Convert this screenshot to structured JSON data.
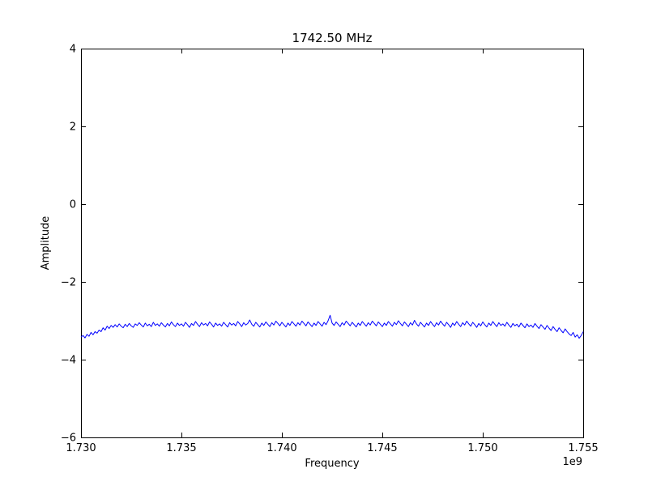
{
  "figure": {
    "background": "#ffffff",
    "axes_color": "#000000",
    "line_color": "#0000ff"
  },
  "chart_data": {
    "type": "line",
    "title": "1742.50 MHz",
    "xlabel": "Frequency",
    "ylabel": "Amplitude",
    "x_offset_label": "1e9",
    "xlim": [
      1730000000,
      1755000000
    ],
    "ylim": [
      -6,
      4
    ],
    "grid": false,
    "legend": null,
    "xticks": [
      1730000000,
      1735000000,
      1740000000,
      1745000000,
      1750000000,
      1755000000
    ],
    "xtick_labels": [
      "1.730",
      "1.735",
      "1.740",
      "1.745",
      "1.750",
      "1.755"
    ],
    "yticks": [
      4,
      2,
      0,
      -2,
      -4,
      -6
    ],
    "ytick_labels": [
      "4",
      "2",
      "0",
      "−2",
      "−4",
      "−6"
    ],
    "series": [
      {
        "name": "amplitude-trace",
        "color": "#0000ff",
        "x_start_mhz": 1730.0,
        "x_step_mhz": 0.1,
        "values": [
          -3.42,
          -3.38,
          -3.44,
          -3.35,
          -3.4,
          -3.3,
          -3.36,
          -3.28,
          -3.32,
          -3.24,
          -3.28,
          -3.18,
          -3.24,
          -3.14,
          -3.2,
          -3.12,
          -3.17,
          -3.1,
          -3.16,
          -3.08,
          -3.14,
          -3.18,
          -3.09,
          -3.15,
          -3.07,
          -3.13,
          -3.17,
          -3.08,
          -3.12,
          -3.05,
          -3.11,
          -3.16,
          -3.06,
          -3.13,
          -3.09,
          -3.15,
          -3.04,
          -3.12,
          -3.08,
          -3.14,
          -3.05,
          -3.11,
          -3.16,
          -3.07,
          -3.13,
          -3.03,
          -3.1,
          -3.15,
          -3.06,
          -3.12,
          -3.08,
          -3.14,
          -3.04,
          -3.1,
          -3.17,
          -3.07,
          -3.12,
          -3.02,
          -3.09,
          -3.15,
          -3.05,
          -3.11,
          -3.07,
          -3.13,
          -3.03,
          -3.09,
          -3.16,
          -3.06,
          -3.12,
          -3.08,
          -3.14,
          -3.04,
          -3.1,
          -3.16,
          -3.05,
          -3.11,
          -3.07,
          -3.13,
          -3.02,
          -3.08,
          -3.15,
          -3.05,
          -3.11,
          -3.07,
          -2.98,
          -3.09,
          -3.14,
          -3.04,
          -3.1,
          -3.16,
          -3.06,
          -3.12,
          -3.03,
          -3.09,
          -3.15,
          -3.05,
          -3.11,
          -3.01,
          -3.07,
          -3.13,
          -3.04,
          -3.1,
          -3.16,
          -3.06,
          -3.12,
          -3.02,
          -3.08,
          -3.14,
          -3.05,
          -3.11,
          -3.01,
          -3.07,
          -3.13,
          -3.03,
          -3.09,
          -3.15,
          -3.06,
          -3.12,
          -3.02,
          -3.08,
          -3.14,
          -3.04,
          -3.1,
          -3.0,
          -2.86,
          -3.06,
          -3.12,
          -3.03,
          -3.09,
          -3.15,
          -3.05,
          -3.11,
          -3.01,
          -3.07,
          -3.13,
          -3.04,
          -3.1,
          -3.16,
          -3.06,
          -3.12,
          -3.02,
          -3.08,
          -3.14,
          -3.05,
          -3.11,
          -3.01,
          -3.07,
          -3.13,
          -3.03,
          -3.09,
          -3.15,
          -3.06,
          -3.12,
          -3.02,
          -3.08,
          -3.14,
          -3.04,
          -3.1,
          -3.0,
          -3.07,
          -3.13,
          -3.03,
          -3.09,
          -3.15,
          -3.05,
          -3.11,
          -2.99,
          -3.08,
          -3.14,
          -3.04,
          -3.1,
          -3.16,
          -3.06,
          -3.12,
          -3.02,
          -3.09,
          -3.15,
          -3.05,
          -3.11,
          -3.01,
          -3.08,
          -3.14,
          -3.04,
          -3.1,
          -3.17,
          -3.06,
          -3.12,
          -3.02,
          -3.09,
          -3.15,
          -3.05,
          -3.11,
          -3.01,
          -3.08,
          -3.14,
          -3.04,
          -3.1,
          -3.17,
          -3.07,
          -3.13,
          -3.03,
          -3.1,
          -3.16,
          -3.06,
          -3.12,
          -3.02,
          -3.09,
          -3.15,
          -3.05,
          -3.12,
          -3.08,
          -3.14,
          -3.04,
          -3.11,
          -3.17,
          -3.07,
          -3.13,
          -3.09,
          -3.16,
          -3.06,
          -3.12,
          -3.18,
          -3.08,
          -3.15,
          -3.11,
          -3.17,
          -3.07,
          -3.14,
          -3.2,
          -3.1,
          -3.16,
          -3.22,
          -3.12,
          -3.19,
          -3.25,
          -3.15,
          -3.22,
          -3.28,
          -3.18,
          -3.25,
          -3.31,
          -3.21,
          -3.28,
          -3.34,
          -3.38,
          -3.3,
          -3.42,
          -3.36,
          -3.45,
          -3.38,
          -3.28
        ]
      }
    ]
  }
}
